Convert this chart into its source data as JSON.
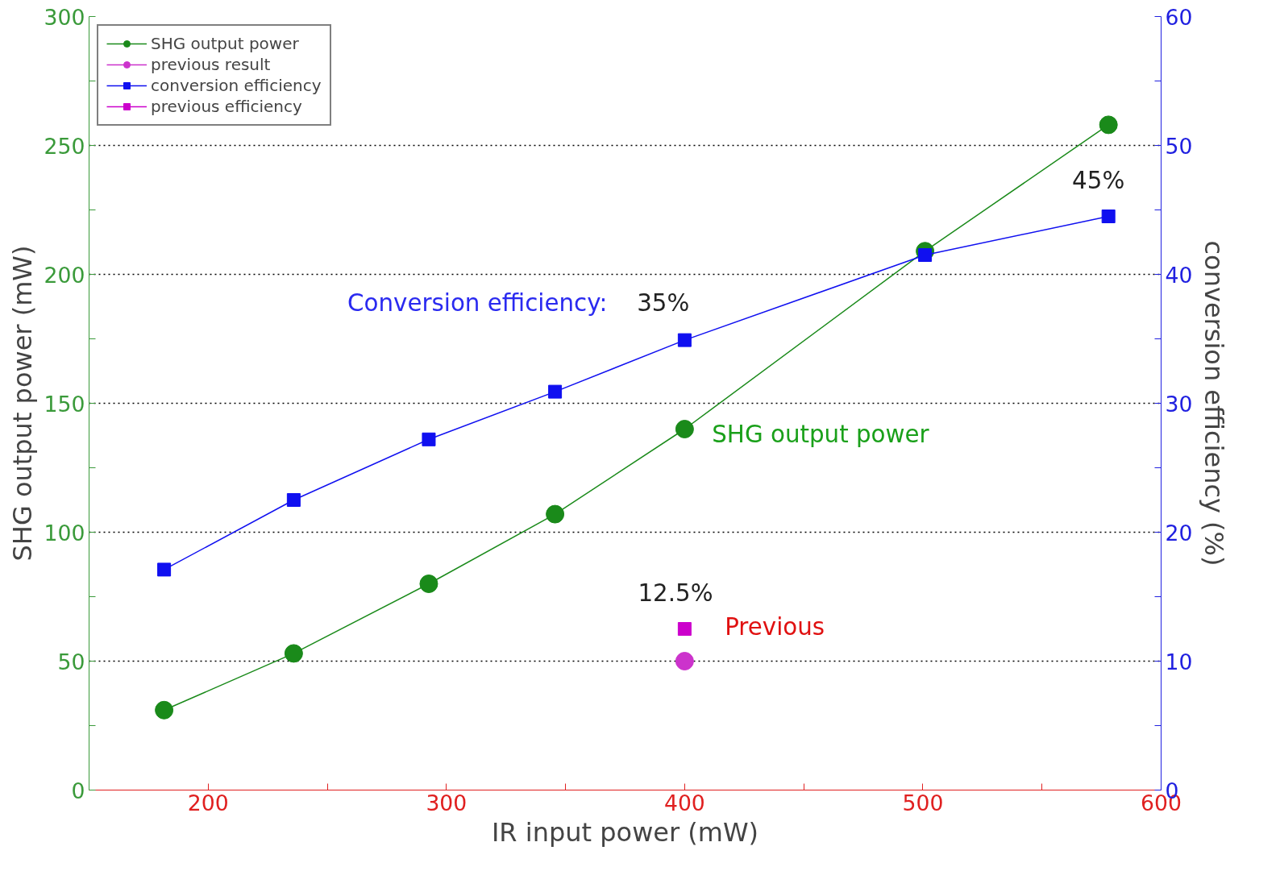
{
  "chart_data": {
    "type": "line",
    "xlabel": "IR input power (mW)",
    "ylabel": "SHG output power (mW)",
    "y2label": "conversion efficiency (%)",
    "xlim": [
      150,
      600
    ],
    "xticks": [
      {
        "value": 150,
        "label": null
      },
      200,
      {
        "value": 250,
        "label": null
      },
      300,
      {
        "value": 350,
        "label": null
      },
      400,
      {
        "value": 450,
        "label": null
      },
      500,
      {
        "value": 550,
        "label": null
      },
      600
    ],
    "ylim": [
      0,
      300
    ],
    "yticks": [
      0,
      {
        "value": 25,
        "label": null
      },
      50,
      {
        "value": 75,
        "label": null
      },
      100,
      {
        "value": 125,
        "label": null
      },
      150,
      {
        "value": 175,
        "label": null
      },
      200,
      {
        "value": 225,
        "label": null
      },
      250,
      {
        "value": 275,
        "label": null
      },
      300
    ],
    "y2lim": [
      0,
      60
    ],
    "y2ticks": [
      0,
      {
        "value": 5,
        "label": null
      },
      10,
      {
        "value": 15,
        "label": null
      },
      20,
      {
        "value": 25,
        "label": null
      },
      30,
      {
        "value": 35,
        "label": null
      },
      40,
      {
        "value": 45,
        "label": null
      },
      50,
      {
        "value": 55,
        "label": null
      },
      60
    ],
    "grid": "y",
    "legend": "top left",
    "series": [
      {
        "name": "SHG output power",
        "color": "#1a8a1a",
        "marker": "circle",
        "x": [
          181.5,
          235.9,
          292.6,
          345.6,
          400,
          500.9,
          577.9
        ],
        "values": [
          31,
          53,
          80,
          107,
          140,
          209,
          258
        ]
      },
      {
        "name": "previous result",
        "color": "#cc33cc",
        "marker": "circle",
        "x": [
          400
        ],
        "values": [
          50
        ]
      },
      {
        "name": "conversion efficiency",
        "color": "#1010f0",
        "marker": "square",
        "axis": "y2",
        "x": [
          181.5,
          235.9,
          292.6,
          345.6,
          400,
          500.9,
          577.9
        ],
        "values": [
          17.1,
          22.5,
          27.2,
          30.9,
          34.9,
          41.5,
          44.5
        ]
      },
      {
        "name": "previous efficiency",
        "color": "#cc00cc",
        "marker": "square",
        "axis": "y2",
        "x": [
          400
        ],
        "values": [
          12.5
        ]
      }
    ],
    "annotations": [
      "Conversion efficiency:",
      "35%",
      "45%",
      "SHG output power",
      "12.5%",
      "Previous"
    ]
  }
}
